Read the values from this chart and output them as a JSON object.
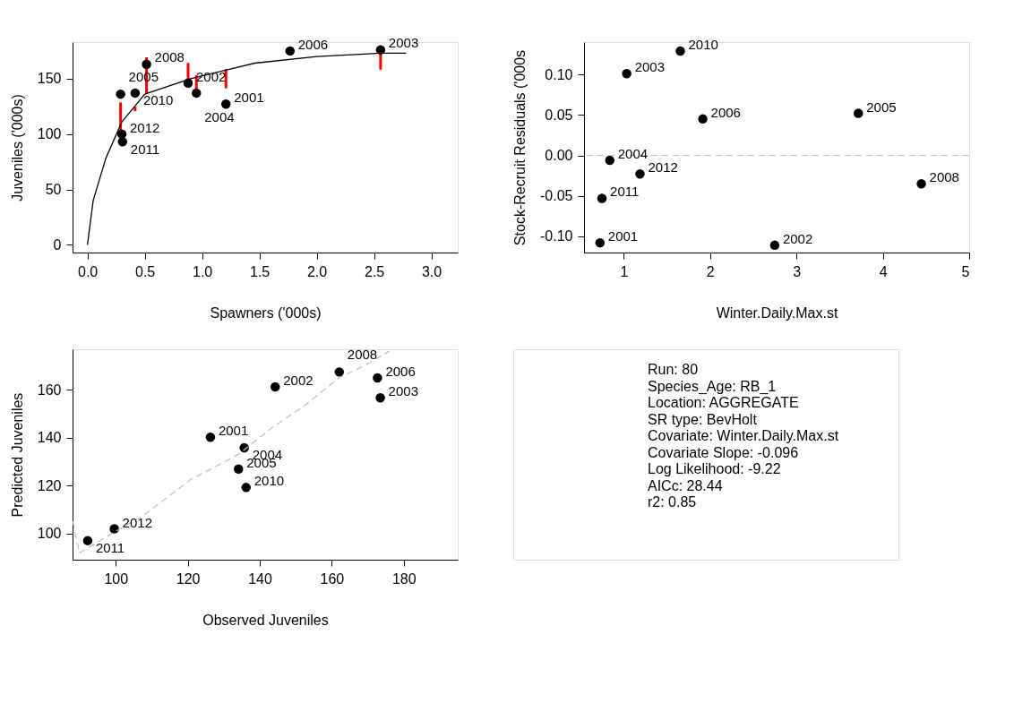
{
  "chart_data": [
    {
      "type": "scatter",
      "xlabel": "Spawners ('000s)",
      "ylabel": "Juveniles ('000s)",
      "marker": "circle",
      "grid": false,
      "xlim": [
        -0.13,
        3.23
      ],
      "ylim": [
        -7,
        183
      ],
      "xticks": [
        {
          "value": 0,
          "label": "0.0"
        },
        0.5,
        {
          "value": 1,
          "label": "1.0"
        },
        1.5,
        {
          "value": 2,
          "label": "2.0"
        },
        2.5,
        {
          "value": 3,
          "label": "3.0"
        }
      ],
      "yticks": [
        0,
        50,
        100,
        150
      ],
      "series": [
        {
          "type": "scatter",
          "color": "#000000",
          "x": [
            0.289,
            0.416,
            0.515,
            0.878,
            0.95,
            1.208,
            1.767,
            2.557,
            0.3,
            0.306
          ],
          "values": [
            136,
            137,
            163,
            146,
            137,
            127,
            175,
            176,
            100,
            93
          ],
          "errors": [
            [
              97.2,
              128.5
            ],
            [
              120.7,
              124.6
            ],
            [
              136.3,
              169.3
            ],
            [
              149.7,
              164.2
            ],
            [
              137.7,
              153.1
            ],
            [
              141.3,
              158.7
            ],
            null,
            [
              158.1,
              172.6
            ],
            null,
            null
          ]
        },
        {
          "type": "line",
          "color": "#000000",
          "line_style": "solid",
          "marker": "none",
          "x": [
            0,
            0.05,
            0.16,
            0.3,
            0.5,
            0.9,
            1.46,
            2.0,
            2.56,
            2.78
          ],
          "values": [
            0,
            40,
            78,
            111,
            136,
            150,
            164,
            170,
            173,
            173
          ]
        }
      ],
      "annotations": [
        {
          "text": "2005",
          "x": 0.289,
          "y": 135.8
        },
        {
          "text": "2010",
          "x": 0.416,
          "y": 137.2
        },
        {
          "text": "2008",
          "x": 0.515,
          "y": 163.4
        },
        {
          "text": "2002",
          "x": 0.878,
          "y": 145.5
        },
        {
          "text": "2004",
          "x": 0.95,
          "y": 136.9
        },
        {
          "text": "2001",
          "x": 1.208,
          "y": 127.4
        },
        {
          "text": "2006",
          "x": 1.767,
          "y": 174.6
        },
        {
          "text": "2003",
          "x": 2.557,
          "y": 176.3
        },
        {
          "text": "2012",
          "x": 0.3,
          "y": 100
        },
        {
          "text": "2011",
          "x": 0.306,
          "y": 92.7
        }
      ]
    },
    {
      "type": "scatter",
      "xlabel": "Winter.Daily.Max.st",
      "ylabel": "Stock-Recruit Residuals ('000s",
      "marker": "circle",
      "grid": false,
      "xlim": [
        0.54,
        5.0
      ],
      "ylim": [
        -0.12,
        0.14
      ],
      "xticks": [
        1,
        2,
        3,
        4,
        5
      ],
      "yticks": [
        {
          "value": -0.1,
          "label": "-0.10"
        },
        {
          "value": -0.05,
          "label": "-0.05"
        },
        {
          "value": 0,
          "label": "0.00"
        },
        {
          "value": 0.05,
          "label": "0.05"
        },
        {
          "value": 0.1,
          "label": "0.10"
        }
      ],
      "ref_lines": [
        {
          "axis": "y",
          "value": 0,
          "color": "#bebebe",
          "line_style": "dashed"
        }
      ],
      "series": [
        {
          "type": "scatter",
          "color": "#000000",
          "x": [
            1.655,
            1.034,
            1.915,
            3.716,
            0.838,
            1.188,
            4.446,
            0.748,
            0.725,
            2.748
          ],
          "values": [
            0.129,
            0.101,
            0.045,
            0.052,
            -0.006,
            -0.023,
            -0.035,
            -0.053,
            -0.108,
            -0.111
          ]
        }
      ],
      "annotations": [
        {
          "text": "2010",
          "x": 1.655,
          "y": 0.129
        },
        {
          "text": "2003",
          "x": 1.034,
          "y": 0.101
        },
        {
          "text": "2006",
          "x": 1.915,
          "y": 0.045
        },
        {
          "text": "2005",
          "x": 3.716,
          "y": 0.052
        },
        {
          "text": "2004",
          "x": 0.838,
          "y": -0.006
        },
        {
          "text": "2012",
          "x": 1.188,
          "y": -0.023
        },
        {
          "text": "2008",
          "x": 4.446,
          "y": -0.035
        },
        {
          "text": "2011",
          "x": 0.748,
          "y": -0.053
        },
        {
          "text": "2001",
          "x": 0.725,
          "y": -0.108
        },
        {
          "text": "2002",
          "x": 2.748,
          "y": -0.111
        }
      ]
    },
    {
      "type": "scatter",
      "xlabel": "Observed Juveniles",
      "ylabel": "Predicted Juveniles",
      "marker": "circle",
      "grid": false,
      "xlim": [
        88,
        195
      ],
      "ylim": [
        89,
        177
      ],
      "xticks": [
        100,
        120,
        140,
        160,
        180
      ],
      "yticks": [
        100,
        120,
        140,
        160
      ],
      "series": [
        {
          "type": "scatter",
          "color": "#000000",
          "x": [
            92.2,
            99.6,
            126.3,
            135.7,
            134.1,
            136.2,
            144.3,
            162.1,
            172.7,
            173.5
          ],
          "values": [
            97.0,
            101.9,
            140.2,
            135.8,
            126.9,
            119.2,
            161.3,
            167.5,
            165.0,
            156.7
          ]
        },
        {
          "type": "line",
          "color": "#bebebe",
          "line_style": "dashed",
          "marker": "none",
          "x": [
            88.1,
            89.9,
            99.9,
            107.3,
            120.9,
            134,
            143.6,
            152.4,
            162,
            169,
            176
          ],
          "values": [
            104.9,
            91.8,
            100.8,
            107.1,
            122.6,
            132.9,
            144.4,
            153.4,
            165,
            170.1,
            176.2
          ]
        }
      ],
      "annotations": [
        {
          "text": "2011",
          "x": 92.2,
          "y": 97.0
        },
        {
          "text": "2012",
          "x": 99.6,
          "y": 101.9
        },
        {
          "text": "2001",
          "x": 126.3,
          "y": 140.2
        },
        {
          "text": "2004",
          "x": 135.7,
          "y": 135.8
        },
        {
          "text": "2005",
          "x": 134.1,
          "y": 126.9
        },
        {
          "text": "2010",
          "x": 136.2,
          "y": 119.2
        },
        {
          "text": "2002",
          "x": 144.3,
          "y": 161.3
        },
        {
          "text": "2008",
          "x": 162.1,
          "y": 167.5
        },
        {
          "text": "2006",
          "x": 172.7,
          "y": 165.0
        },
        {
          "text": "2003",
          "x": 173.5,
          "y": 156.7
        }
      ]
    },
    {
      "type": "other",
      "annotations": [
        "Run: 80",
        "Species_Age: RB_1",
        "Location: AGGREGATE",
        "SR type: BevHolt",
        "Covariate: Winter.Daily.Max.st",
        "Covariate Slope: -0.096",
        "Log Likelihood: -9.22",
        "AICc: 28.44",
        "r2: 0.85"
      ]
    }
  ]
}
